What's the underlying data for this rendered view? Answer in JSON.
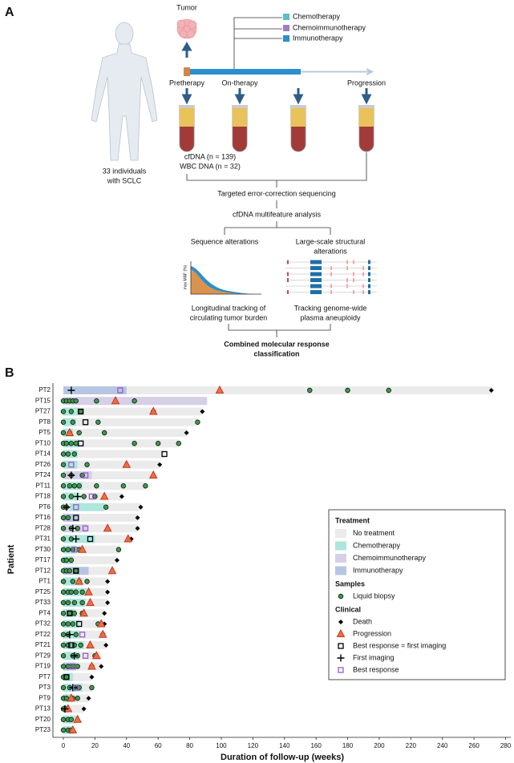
{
  "panel_a": {
    "label": "A",
    "tumor": "Tumor",
    "treatments": [
      "Chemotherapy",
      "Chemoimmunotherapy",
      "Immunotherapy"
    ],
    "timepoints": [
      "Pretherapy",
      "On-therapy",
      "Progression"
    ],
    "samples": [
      "cfDNA (n = 139)",
      "WBC DNA (n = 32)"
    ],
    "cohort": [
      "33 individuals",
      "with SCLC"
    ],
    "step1": "Targeted error-correction sequencing",
    "step2": "cfDNA multifeature analysis",
    "branch_left": {
      "title": "Sequence alterations",
      "axis": "max MAF (%)",
      "result": [
        "Longitudinal tracking of",
        "circulating tumor burden"
      ]
    },
    "branch_right": {
      "title": [
        "Large-scale structural",
        "alterations"
      ],
      "result": [
        "Tracking genome-wide",
        "plasma aneuploidy"
      ]
    },
    "conclusion": [
      "Combined molecular response",
      "classification"
    ]
  },
  "chart_data": {
    "type": "swimmer",
    "panel_label": "B",
    "xlabel": "Duration of follow-up (weeks)",
    "ylabel": "Patient",
    "xlim": [
      -6.6,
      283.3
    ],
    "xticks": [
      0,
      20,
      40,
      60,
      80,
      100,
      120,
      140,
      160,
      180,
      200,
      220,
      240,
      260,
      280
    ],
    "categories": [
      "PT2",
      "PT15",
      "PT27",
      "PT8",
      "PT5",
      "PT10",
      "PT14",
      "PT26",
      "PT24",
      "PT11",
      "PT18",
      "PT6",
      "PT16",
      "PT28",
      "PT31",
      "PT30",
      "PT17",
      "PT12",
      "PT1",
      "PT25",
      "PT33",
      "PT4",
      "PT32",
      "PT22",
      "PT21",
      "PT29",
      "PT19",
      "PT7",
      "PT3",
      "PT9",
      "PT13",
      "PT20",
      "PT23"
    ],
    "treatment_title": "Treatment",
    "treatments": [
      {
        "name": "No treatment",
        "color": "#ebebeb",
        "spans": [
          [
            0,
            271
          ],
          [
            0,
            91
          ],
          [
            0,
            88
          ],
          [
            0,
            85
          ],
          [
            0,
            78
          ],
          [
            0,
            73
          ],
          [
            0,
            64
          ],
          [
            0,
            61
          ],
          [
            0,
            57
          ],
          [
            0,
            52
          ],
          [
            0,
            37
          ],
          [
            0,
            49
          ],
          [
            0,
            47
          ],
          [
            0,
            47
          ],
          [
            0,
            43
          ],
          [
            0,
            36
          ],
          [
            0,
            34
          ],
          [
            0,
            31
          ],
          [
            0,
            28
          ],
          [
            0,
            28
          ],
          [
            0,
            28
          ],
          [
            0,
            26
          ],
          [
            0,
            26
          ],
          [
            0,
            26
          ],
          [
            0,
            27
          ],
          [
            0,
            24
          ],
          [
            0,
            24
          ],
          [
            0,
            18
          ],
          [
            0,
            18
          ],
          [
            0,
            16
          ],
          [
            0,
            13
          ],
          [
            0,
            10
          ],
          [
            0,
            7
          ]
        ]
      },
      {
        "name": "Chemotherapy",
        "color": "#ade6dc",
        "spans": [
          null,
          null,
          [
            0,
            10
          ],
          [
            0,
            8
          ],
          [
            0,
            6
          ],
          [
            0,
            10
          ],
          [
            0,
            9
          ],
          [
            0,
            9
          ],
          null,
          [
            0,
            12
          ],
          [
            0,
            10
          ],
          [
            4,
            26
          ],
          null,
          null,
          [
            0,
            20
          ],
          [
            0,
            8
          ],
          [
            0,
            6
          ],
          null,
          [
            0,
            12
          ],
          [
            0,
            15
          ],
          [
            0,
            14
          ],
          [
            0,
            8
          ],
          [
            0,
            10
          ],
          [
            0,
            10
          ],
          [
            0,
            13
          ],
          [
            0,
            10
          ],
          null,
          [
            0,
            6
          ],
          [
            0,
            12
          ],
          [
            0,
            6
          ],
          [
            0,
            3
          ],
          [
            0,
            8
          ],
          [
            0,
            6
          ]
        ]
      },
      {
        "name": "Chemoimmunotherapy",
        "color": "#d6cfe7",
        "spans": [
          null,
          [
            0,
            91
          ],
          null,
          null,
          null,
          null,
          null,
          null,
          [
            0,
            18
          ],
          null,
          null,
          null,
          null,
          [
            0,
            15
          ],
          null,
          null,
          null,
          null,
          null,
          null,
          null,
          null,
          null,
          null,
          null,
          null,
          null,
          null,
          null,
          null,
          null,
          null,
          null
        ]
      },
      {
        "name": "Immunotherapy",
        "color": "#b6c6e2",
        "spans": [
          [
            0,
            40
          ],
          null,
          null,
          null,
          null,
          null,
          null,
          null,
          null,
          null,
          null,
          null,
          [
            0,
            10
          ],
          null,
          null,
          null,
          null,
          [
            0,
            16
          ],
          null,
          null,
          null,
          null,
          null,
          null,
          null,
          null,
          [
            0,
            8
          ],
          null,
          null,
          null,
          null,
          null,
          null
        ]
      }
    ],
    "samples_title": "Samples",
    "samples": {
      "name": "Liquid biopsy",
      "color": "#3d9a4b",
      "values": [
        [
          156,
          180,
          206
        ],
        [
          0,
          2,
          4,
          6,
          8,
          21,
          45
        ],
        [
          0,
          5,
          11,
          57
        ],
        [
          0,
          6,
          22,
          85
        ],
        [
          0,
          4,
          10,
          26
        ],
        [
          0,
          2,
          5,
          8,
          45,
          60,
          73
        ],
        [
          0,
          3,
          7
        ],
        [
          0,
          15
        ],
        [
          0,
          5,
          12
        ],
        [
          0,
          4,
          7,
          10,
          21,
          38,
          52
        ],
        [
          0,
          5,
          13,
          20
        ],
        [
          0,
          2,
          27
        ],
        [
          0,
          3
        ],
        [
          0,
          5,
          9
        ],
        [
          0,
          5
        ],
        [
          0,
          3,
          6,
          10,
          35
        ],
        [
          0,
          2,
          5
        ],
        [
          0,
          2,
          4,
          8
        ],
        [
          0,
          6,
          10,
          15
        ],
        [
          0,
          3,
          5,
          8,
          12
        ],
        [
          0,
          3,
          7,
          12
        ],
        [
          0,
          4,
          7,
          12
        ],
        [
          0,
          3,
          6,
          22
        ],
        [
          0,
          3,
          8,
          25
        ],
        [
          0,
          3,
          7,
          11
        ],
        [
          0,
          6,
          9,
          20
        ],
        [
          0,
          3,
          6,
          9,
          18
        ],
        [
          0,
          2
        ],
        [
          0,
          4,
          7,
          10,
          18
        ],
        [
          0,
          2,
          6,
          9
        ],
        [
          0,
          2
        ],
        [
          0,
          3,
          5
        ],
        [
          0,
          3,
          5
        ]
      ]
    },
    "clinical_title": "Clinical",
    "clinical": [
      {
        "name": "Death",
        "shape": "diamond",
        "color": "#000000",
        "values": [
          271,
          null,
          88,
          null,
          78,
          null,
          null,
          61,
          null,
          null,
          37,
          49,
          47,
          47,
          43,
          null,
          34,
          null,
          28,
          28,
          28,
          26,
          26,
          null,
          27,
          null,
          24,
          18,
          null,
          16,
          13,
          null,
          null
        ]
      },
      {
        "name": "Progression",
        "shape": "triangle",
        "color": "#f36d3b",
        "values": [
          99,
          33,
          57,
          null,
          4,
          null,
          null,
          40,
          57,
          null,
          26,
          null,
          null,
          28,
          41,
          12,
          null,
          31,
          10,
          16,
          17,
          13,
          24,
          25,
          17,
          21,
          18,
          null,
          null,
          5,
          3,
          9,
          6
        ]
      },
      {
        "name": "Best response = first imaging",
        "shape": "square",
        "color": "#000000",
        "values": [
          null,
          null,
          11,
          14,
          null,
          11,
          64,
          null,
          null,
          null,
          null,
          null,
          8,
          null,
          17,
          null,
          null,
          8,
          null,
          null,
          null,
          4,
          10,
          null,
          5,
          null,
          null,
          2,
          null,
          null,
          null,
          null,
          null
        ]
      },
      {
        "name": "First imaging",
        "shape": "plus",
        "color": "#000000",
        "values": [
          5,
          null,
          null,
          null,
          null,
          null,
          null,
          null,
          5,
          null,
          9,
          2,
          null,
          6,
          8,
          null,
          null,
          null,
          null,
          null,
          null,
          null,
          null,
          4,
          null,
          7,
          null,
          null,
          6,
          null,
          1,
          null,
          null
        ]
      },
      {
        "name": "Best response",
        "shape": "square",
        "color": "#9b59c9",
        "values": [
          36,
          null,
          null,
          null,
          null,
          null,
          null,
          5,
          14,
          null,
          18,
          8,
          null,
          14,
          null,
          7,
          null,
          null,
          null,
          null,
          null,
          null,
          null,
          12,
          null,
          14,
          6,
          null,
          8,
          null,
          null,
          null,
          null
        ]
      }
    ]
  }
}
